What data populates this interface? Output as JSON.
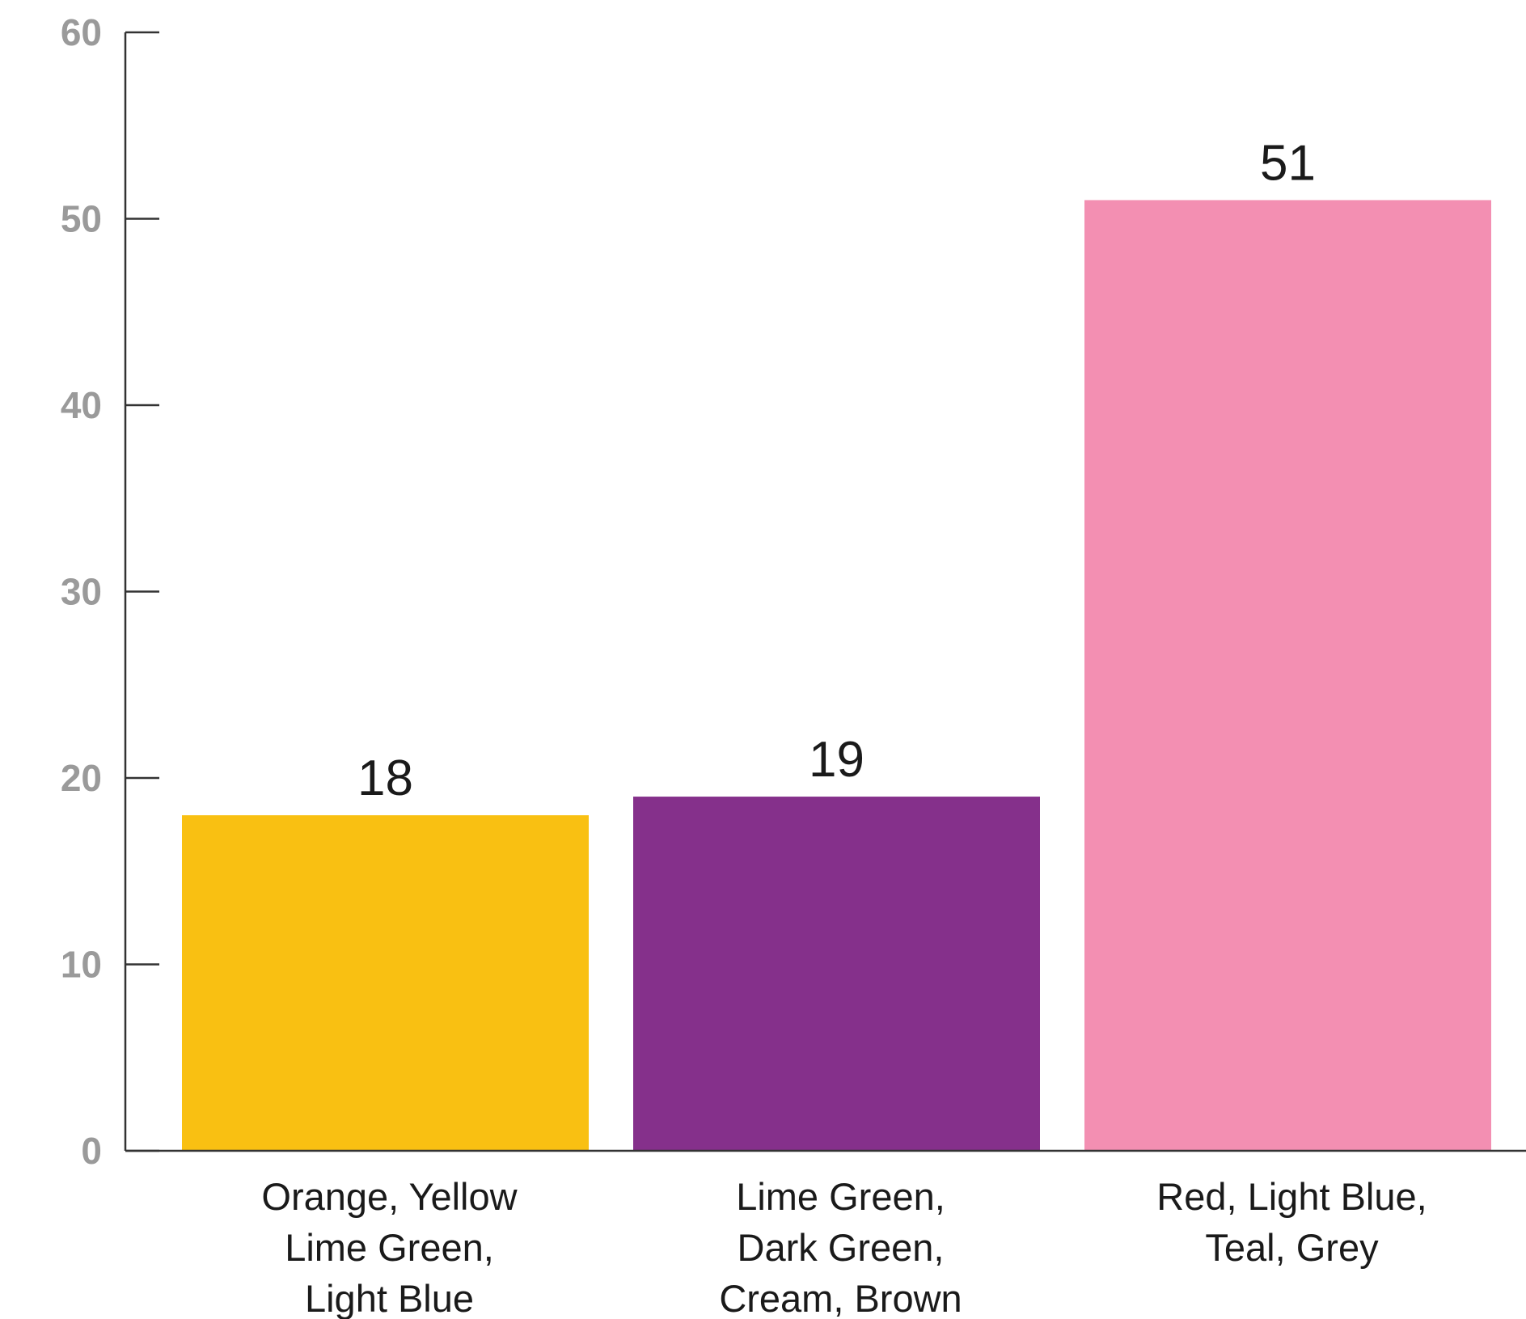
{
  "chart_data": {
    "type": "bar",
    "title": "",
    "xlabel": "",
    "ylabel": "",
    "ylim": [
      0,
      60
    ],
    "yticks": [
      0,
      10,
      20,
      30,
      40,
      50,
      60
    ],
    "grid": false,
    "categories": [
      [
        "Orange, Yellow",
        "Lime Green,",
        "Light Blue"
      ],
      [
        "Lime Green,",
        "Dark Green,",
        "Cream, Brown"
      ],
      [
        "Red, Light Blue,",
        "Teal, Grey"
      ]
    ],
    "values": [
      18,
      19,
      51
    ],
    "colors": [
      "#f9c012",
      "#85308b",
      "#f38fb2"
    ]
  }
}
